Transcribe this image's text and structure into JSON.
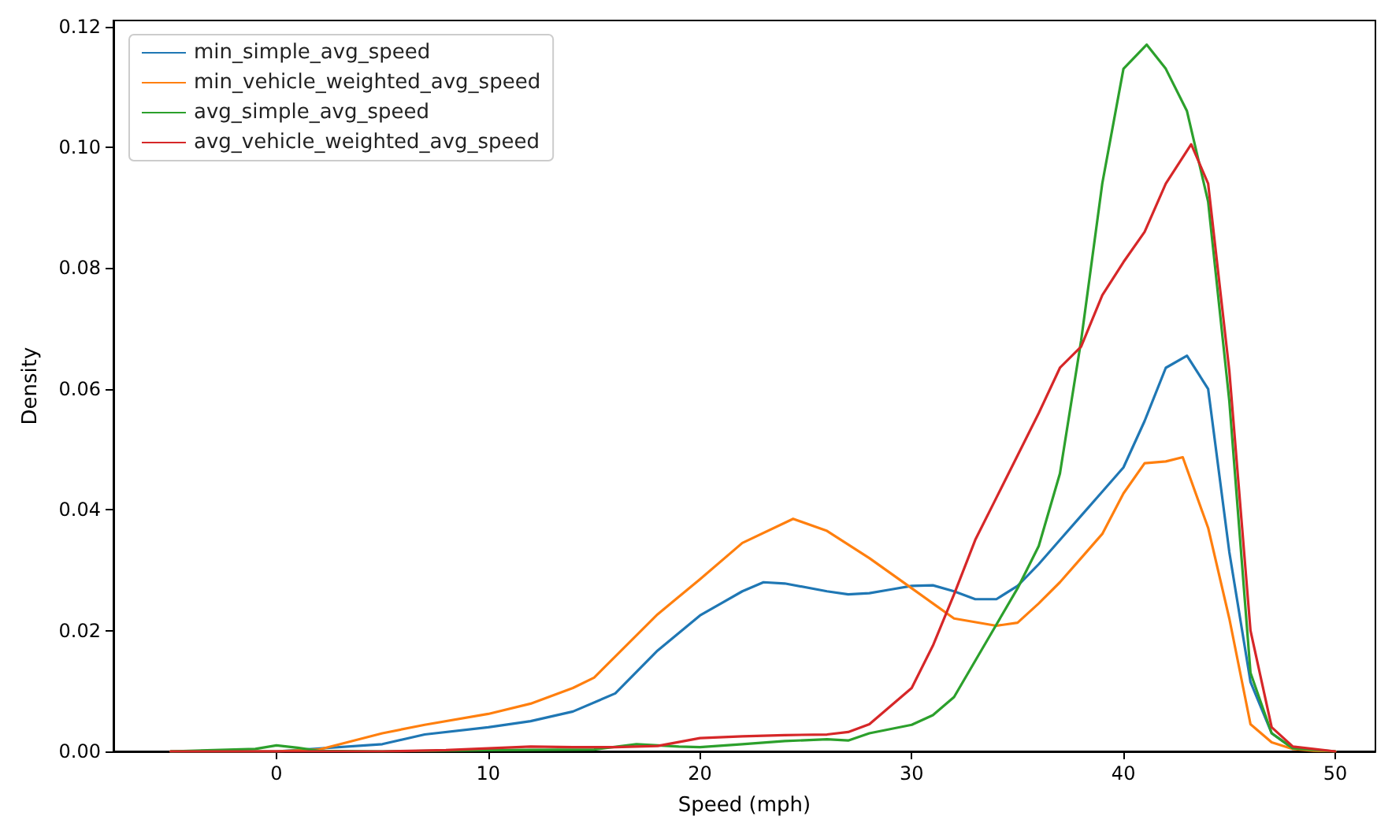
{
  "chart_data": {
    "type": "line",
    "xlabel": "Speed (mph)",
    "ylabel": "Density",
    "xlim": [
      -7.7,
      51.9
    ],
    "ylim": [
      0,
      0.121
    ],
    "xticks": [
      0,
      10,
      20,
      30,
      40,
      50
    ],
    "yticks": [
      {
        "value": 0,
        "label": "0.00"
      },
      {
        "value": 0.02,
        "label": "0.02"
      },
      {
        "value": 0.04,
        "label": "0.04"
      },
      {
        "value": 0.06,
        "label": "0.06"
      },
      {
        "value": 0.08,
        "label": "0.08"
      },
      {
        "value": 0.1,
        "label": "0.10"
      },
      {
        "value": 0.12,
        "label": "0.12"
      }
    ],
    "grid": false,
    "legend": "top left",
    "marker": "none",
    "line_style": "solid",
    "series": [
      {
        "name": "min_simple_avg_speed",
        "color": "#1f77b4",
        "x": [
          -5,
          0,
          5,
          7,
          10,
          12,
          14,
          16,
          18,
          20,
          22,
          23,
          24,
          26,
          27,
          28,
          29,
          30,
          31,
          32,
          33,
          34,
          35,
          36,
          37,
          38,
          39,
          40,
          41,
          42,
          43,
          44,
          45,
          46,
          47,
          48
        ],
        "values": [
          0,
          0,
          0.0012,
          0.0028,
          0.004,
          0.005,
          0.0066,
          0.0096,
          0.0167,
          0.0225,
          0.0265,
          0.028,
          0.0278,
          0.0265,
          0.026,
          0.0262,
          0.0268,
          0.0274,
          0.0275,
          0.0265,
          0.0252,
          0.0252,
          0.0274,
          0.031,
          0.035,
          0.039,
          0.043,
          0.047,
          0.0547,
          0.0635,
          0.0655,
          0.06,
          0.033,
          0.0115,
          0.003,
          0.0005
        ]
      },
      {
        "name": "min_vehicle_weighted_avg_speed",
        "color": "#ff7f0e",
        "x": [
          -5,
          0,
          2,
          5,
          7,
          10,
          12,
          14,
          15,
          18,
          20,
          22,
          24.4,
          26,
          28,
          30,
          31,
          32,
          34,
          35,
          36,
          37,
          38,
          39,
          40,
          41,
          42,
          42.8,
          44,
          45,
          46,
          47,
          48,
          49,
          50
        ],
        "values": [
          0,
          0,
          0.0003,
          0.003,
          0.0044,
          0.0062,
          0.0079,
          0.0105,
          0.0122,
          0.0227,
          0.0285,
          0.0345,
          0.0385,
          0.0365,
          0.032,
          0.027,
          0.0245,
          0.022,
          0.0208,
          0.0213,
          0.0245,
          0.028,
          0.032,
          0.036,
          0.0427,
          0.0477,
          0.048,
          0.0487,
          0.037,
          0.022,
          0.0045,
          0.0015,
          0.0004,
          0.0001,
          0
        ]
      },
      {
        "name": "avg_simple_avg_speed",
        "color": "#2ca02c",
        "x": [
          -5,
          -1,
          0,
          1,
          2,
          5,
          10,
          15,
          17,
          19,
          20,
          22,
          24,
          26,
          27,
          28,
          30,
          31,
          32,
          33,
          34,
          35,
          36,
          37,
          38,
          39,
          40,
          41.1,
          42,
          43,
          44,
          45,
          46,
          47,
          48,
          50
        ],
        "values": [
          0,
          0.0004,
          0.001,
          0.0006,
          0.0001,
          0,
          0.0002,
          0.0003,
          0.0012,
          0.0008,
          0.0007,
          0.0012,
          0.0017,
          0.002,
          0.0018,
          0.003,
          0.0044,
          0.006,
          0.009,
          0.015,
          0.021,
          0.027,
          0.034,
          0.046,
          0.068,
          0.094,
          0.113,
          0.117,
          0.113,
          0.106,
          0.091,
          0.058,
          0.013,
          0.003,
          0.0005,
          0
        ]
      },
      {
        "name": "avg_vehicle_weighted_avg_speed",
        "color": "#d62728",
        "x": [
          -5,
          5,
          8,
          10,
          12,
          14,
          16,
          18,
          20,
          22,
          24,
          26,
          27,
          28,
          30,
          31,
          32,
          33,
          34,
          35,
          36,
          37,
          38,
          39,
          40,
          41,
          42,
          43.2,
          44,
          45,
          46,
          47,
          48,
          50
        ],
        "values": [
          0,
          0,
          0.0002,
          0.0005,
          0.0008,
          0.0007,
          0.0007,
          0.0009,
          0.0022,
          0.0025,
          0.0027,
          0.0028,
          0.0032,
          0.0045,
          0.0105,
          0.0175,
          0.026,
          0.035,
          0.042,
          0.049,
          0.056,
          0.0635,
          0.067,
          0.0755,
          0.081,
          0.086,
          0.094,
          0.1005,
          0.094,
          0.063,
          0.02,
          0.004,
          0.0008,
          0
        ]
      }
    ]
  }
}
